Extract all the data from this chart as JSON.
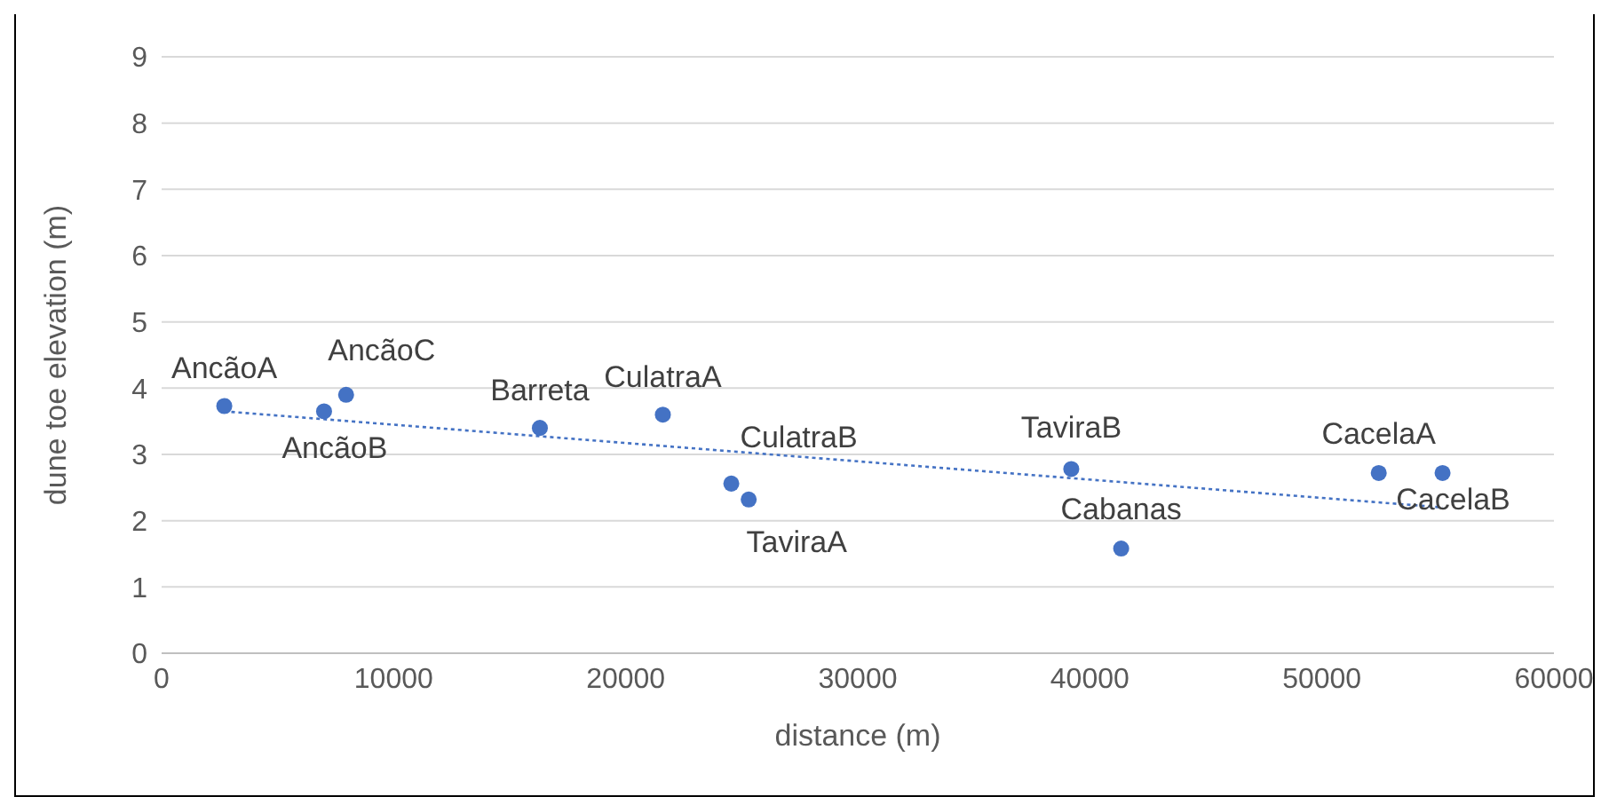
{
  "chart_data": {
    "type": "scatter",
    "xlabel": "distance (m)",
    "ylabel": "dune toe elevation (m)",
    "xlim": [
      0,
      60000
    ],
    "xticks": [
      0,
      10000,
      20000,
      30000,
      40000,
      50000,
      60000
    ],
    "ylim": [
      0,
      9
    ],
    "yticks": [
      0,
      1,
      2,
      3,
      4,
      5,
      6,
      7,
      8,
      9
    ],
    "grid": "y",
    "series": [
      {
        "marker": "circle",
        "color": "#4472c4",
        "x": [
          2700,
          7000,
          7950,
          16300,
          21600,
          24550,
          25300,
          39200,
          41350,
          52450,
          55200
        ],
        "values": [
          3.73,
          3.65,
          3.9,
          3.4,
          3.6,
          2.56,
          2.32,
          2.78,
          1.58,
          2.72,
          2.72
        ]
      },
      {
        "type": "line",
        "color": "#4472c4",
        "line_style": "dotted",
        "x": [
          2700,
          55200
        ],
        "values": [
          3.65,
          2.2
        ]
      }
    ],
    "annotations": [
      {
        "text": "AncãoA",
        "x": 2700,
        "y": 3.73
      },
      {
        "text": "AncãoB",
        "x": 7000,
        "y": 3.65
      },
      {
        "text": "AncãoC",
        "x": 7950,
        "y": 3.9
      },
      {
        "text": "Barreta",
        "x": 16300,
        "y": 3.4
      },
      {
        "text": "CulatraA",
        "x": 21600,
        "y": 3.6
      },
      {
        "text": "CulatraB",
        "x": 24550,
        "y": 2.56
      },
      {
        "text": "TaviraA",
        "x": 25300,
        "y": 2.32
      },
      {
        "text": "TaviraB",
        "x": 39200,
        "y": 2.78
      },
      {
        "text": "Cabanas",
        "x": 41350,
        "y": 1.58
      },
      {
        "text": "CacelaA",
        "x": 52450,
        "y": 2.72
      },
      {
        "text": "CacelaB",
        "x": 55200,
        "y": 2.72
      }
    ]
  }
}
